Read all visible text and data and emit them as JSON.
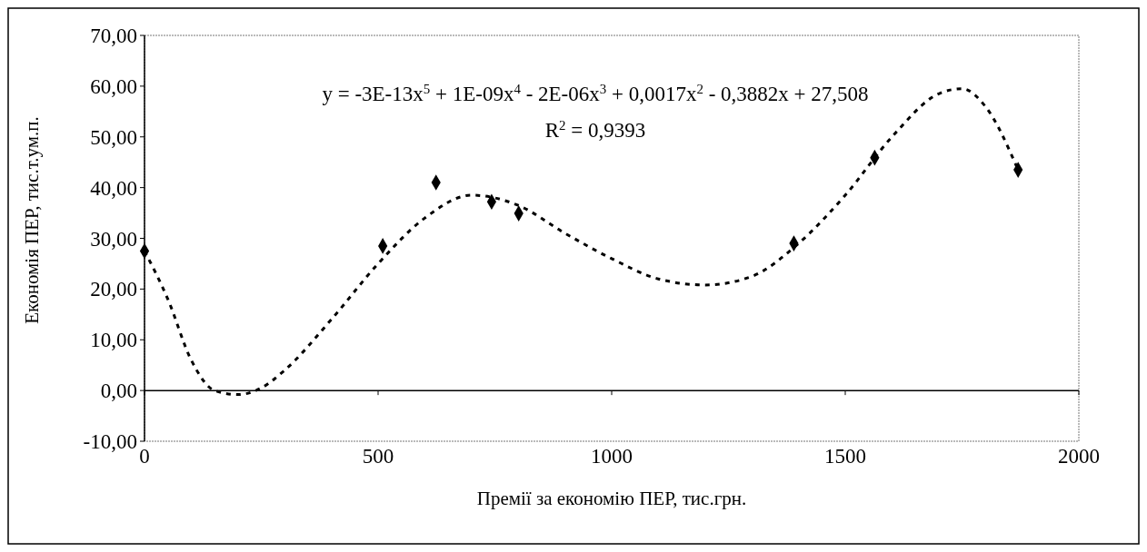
{
  "chart_data": {
    "type": "scatter",
    "xlabel": "Премії за економію ПЕР, тис.грн.",
    "ylabel": "Економія ПЕР, тис.т.ум.п.",
    "annotations": [
      "y = -3E-13x$^{5}$ + 1E-09x$^{4}$ - 2E-06x$^{3}$ + 0,0017x$^{2}$ - 0,3882x + 27,508",
      "R$^{2}$ = 0,9393"
    ],
    "xlim": [
      0,
      2000
    ],
    "xticks": [
      0,
      500,
      1000,
      1500,
      2000
    ],
    "ylim": [
      -10,
      70
    ],
    "yticks": [
      {
        "value": -10,
        "label": "-10,00"
      },
      {
        "value": 0,
        "label": "0,00"
      },
      {
        "value": 10,
        "label": "10,00"
      },
      {
        "value": 20,
        "label": "20,00"
      },
      {
        "value": 30,
        "label": "30,00"
      },
      {
        "value": 40,
        "label": "40,00"
      },
      {
        "value": 50,
        "label": "50,00"
      },
      {
        "value": 60,
        "label": "60,00"
      },
      {
        "value": 70,
        "label": "70,00"
      }
    ],
    "series": [
      {
        "color": "#000000",
        "marker": "diamond",
        "x": [
          0,
          510,
          624,
          743,
          801,
          1390,
          1563,
          1870
        ],
        "values": [
          27.5,
          28.5,
          41.0,
          37.2,
          34.9,
          29.0,
          45.9,
          43.5
        ]
      },
      {
        "type": "line",
        "color": "#000000",
        "marker": "none",
        "line_style": "dashed",
        "x": [
          0,
          50,
          100,
          150,
          200,
          250,
          300,
          400,
          500,
          600,
          700,
          800,
          900,
          1000,
          1100,
          1200,
          1300,
          1400,
          1500,
          1600,
          1700,
          1750,
          1800,
          1870
        ],
        "values": [
          27.5,
          18,
          6,
          0,
          -0.8,
          0.5,
          4,
          14,
          25,
          34,
          38.5,
          36.5,
          31,
          26,
          22,
          20.8,
          22.5,
          29,
          38.5,
          50,
          58.5,
          59.5,
          56,
          43.5
        ]
      }
    ]
  }
}
